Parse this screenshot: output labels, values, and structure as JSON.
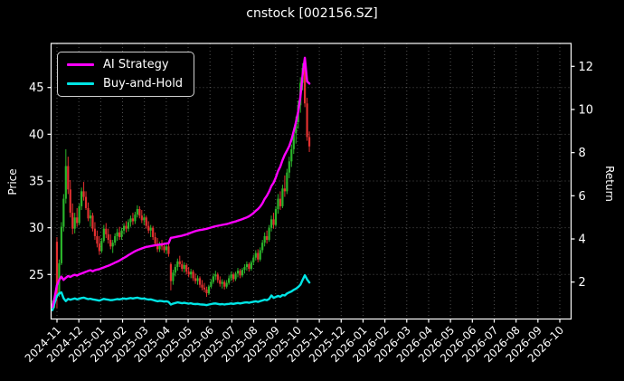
{
  "chart_data": {
    "type": "candlestick",
    "title": "cnstock [002156.SZ]",
    "left_axis": {
      "label": "Price",
      "ticks": [
        25,
        30,
        35,
        40,
        45
      ],
      "range": [
        20.3,
        49.7
      ]
    },
    "right_axis": {
      "label": "Return",
      "ticks": [
        2,
        4,
        6,
        8,
        10,
        12
      ],
      "range": [
        0.35,
        13.05
      ]
    },
    "x_tick_labels": [
      "2024-11",
      "2024-12",
      "2025-01",
      "2025-02",
      "2025-03",
      "2025-04",
      "2025-05",
      "2025-06",
      "2025-07",
      "2025-08",
      "2025-09",
      "2025-10",
      "2025-11",
      "2025-12",
      "2026-01",
      "2026-02",
      "2026-03",
      "2026-04",
      "2026-05",
      "2026-06",
      "2026-07",
      "2026-08",
      "2026-09",
      "2026-10"
    ],
    "grid": true,
    "legend_position": "upper left",
    "background": "#000000",
    "candles": {
      "name": "OHLC price",
      "axis": "left",
      "up_color": "#2bb52b",
      "down_color": "#e33030",
      "ohlc": [
        [
          21.6,
          22.2,
          21.2,
          21.9
        ],
        [
          21.9,
          22.5,
          21.4,
          22.2
        ],
        [
          28.5,
          29.0,
          21.4,
          22.5
        ],
        [
          22.8,
          26.6,
          22.6,
          26.2
        ],
        [
          26.2,
          30.6,
          26.0,
          30.1
        ],
        [
          30.1,
          33.6,
          29.6,
          33.1
        ],
        [
          33.1,
          38.4,
          32.6,
          36.6
        ],
        [
          36.6,
          37.6,
          33.6,
          34.1
        ],
        [
          34.1,
          35.1,
          31.1,
          31.6
        ],
        [
          31.6,
          32.6,
          29.3,
          29.9
        ],
        [
          29.9,
          31.6,
          29.4,
          31.1
        ],
        [
          31.1,
          32.1,
          30.1,
          30.5
        ],
        [
          30.5,
          32.6,
          30.3,
          32.3
        ],
        [
          32.3,
          34.3,
          31.9,
          33.9
        ],
        [
          33.9,
          34.9,
          32.9,
          33.3
        ],
        [
          33.3,
          33.9,
          31.9,
          32.1
        ],
        [
          32.1,
          32.7,
          30.7,
          31.0
        ],
        [
          31.0,
          31.9,
          30.1,
          31.3
        ],
        [
          31.3,
          31.6,
          29.6,
          29.9
        ],
        [
          29.9,
          30.6,
          28.7,
          29.1
        ],
        [
          29.1,
          29.7,
          27.9,
          28.3
        ],
        [
          28.3,
          29.1,
          27.1,
          27.5
        ],
        [
          27.5,
          28.9,
          27.3,
          28.6
        ],
        [
          28.6,
          30.3,
          28.4,
          29.9
        ],
        [
          29.9,
          30.5,
          28.9,
          29.3
        ],
        [
          29.3,
          29.9,
          28.3,
          28.7
        ],
        [
          28.7,
          29.3,
          27.7,
          28.0
        ],
        [
          28.0,
          28.7,
          27.3,
          28.4
        ],
        [
          28.4,
          29.4,
          28.1,
          29.1
        ],
        [
          29.1,
          29.9,
          28.6,
          29.5
        ],
        [
          29.5,
          30.1,
          28.7,
          29.0
        ],
        [
          29.0,
          30.0,
          28.7,
          29.7
        ],
        [
          29.7,
          30.5,
          29.3,
          30.2
        ],
        [
          30.2,
          30.7,
          29.5,
          29.9
        ],
        [
          29.9,
          30.9,
          29.6,
          30.6
        ],
        [
          30.6,
          31.3,
          30.1,
          31.0
        ],
        [
          31.0,
          31.6,
          30.3,
          30.7
        ],
        [
          30.7,
          31.7,
          30.4,
          31.4
        ],
        [
          31.4,
          32.4,
          31.1,
          32.0
        ],
        [
          32.0,
          32.3,
          31.0,
          31.3
        ],
        [
          31.3,
          31.9,
          30.5,
          30.8
        ],
        [
          30.8,
          31.5,
          30.3,
          31.1
        ],
        [
          31.1,
          31.3,
          29.9,
          30.2
        ],
        [
          30.2,
          30.7,
          29.4,
          29.7
        ],
        [
          29.7,
          30.3,
          29.0,
          30.0
        ],
        [
          30.0,
          30.2,
          28.7,
          29.0
        ],
        [
          29.0,
          29.5,
          28.0,
          28.3
        ],
        [
          28.3,
          28.9,
          27.4,
          27.7
        ],
        [
          27.7,
          28.5,
          27.4,
          28.2
        ],
        [
          28.2,
          28.7,
          27.6,
          28.0
        ],
        [
          28.0,
          28.4,
          27.3,
          27.6
        ],
        [
          27.6,
          28.3,
          27.2,
          28.0
        ],
        [
          28.0,
          28.3,
          26.9,
          27.2
        ],
        [
          26.1,
          26.3,
          23.3,
          24.3
        ],
        [
          24.3,
          25.5,
          23.9,
          25.2
        ],
        [
          25.2,
          26.1,
          24.8,
          25.8
        ],
        [
          25.8,
          26.7,
          25.4,
          26.4
        ],
        [
          26.4,
          27.0,
          25.8,
          26.1
        ],
        [
          26.1,
          26.5,
          25.3,
          25.6
        ],
        [
          25.6,
          26.3,
          25.2,
          26.0
        ],
        [
          26.0,
          26.2,
          25.0,
          25.3
        ],
        [
          25.3,
          25.8,
          24.7,
          25.0
        ],
        [
          25.0,
          25.6,
          24.6,
          25.3
        ],
        [
          25.3,
          25.5,
          24.3,
          24.6
        ],
        [
          24.6,
          25.1,
          24.0,
          24.3
        ],
        [
          24.3,
          24.9,
          23.9,
          24.6
        ],
        [
          24.6,
          24.8,
          23.6,
          23.9
        ],
        [
          23.9,
          24.4,
          23.3,
          23.6
        ],
        [
          23.6,
          24.1,
          23.1,
          23.4
        ],
        [
          23.4,
          23.7,
          22.6,
          23.0
        ],
        [
          23.0,
          23.9,
          22.8,
          23.7
        ],
        [
          23.7,
          24.5,
          23.5,
          24.2
        ],
        [
          24.2,
          25.1,
          24.0,
          24.8
        ],
        [
          24.8,
          25.4,
          24.4,
          25.0
        ],
        [
          25.0,
          25.2,
          24.1,
          24.4
        ],
        [
          24.4,
          24.8,
          23.7,
          24.0
        ],
        [
          24.0,
          24.5,
          23.5,
          24.2
        ],
        [
          24.2,
          24.4,
          23.4,
          23.7
        ],
        [
          23.7,
          24.4,
          23.5,
          24.1
        ],
        [
          24.1,
          24.9,
          23.9,
          24.6
        ],
        [
          24.6,
          25.3,
          24.3,
          25.0
        ],
        [
          25.0,
          25.2,
          24.2,
          24.5
        ],
        [
          24.5,
          25.3,
          24.3,
          25.1
        ],
        [
          25.1,
          25.7,
          24.7,
          25.4
        ],
        [
          25.4,
          25.6,
          24.6,
          24.9
        ],
        [
          24.9,
          25.7,
          24.7,
          25.5
        ],
        [
          25.5,
          26.1,
          25.1,
          25.8
        ],
        [
          25.8,
          26.4,
          25.4,
          26.1
        ],
        [
          26.1,
          26.3,
          25.3,
          25.6
        ],
        [
          25.6,
          26.5,
          25.4,
          26.3
        ],
        [
          26.3,
          27.1,
          26.0,
          26.8
        ],
        [
          26.8,
          27.6,
          26.5,
          27.3
        ],
        [
          27.3,
          27.7,
          26.3,
          26.6
        ],
        [
          26.6,
          27.9,
          26.4,
          27.6
        ],
        [
          27.6,
          28.7,
          27.3,
          28.4
        ],
        [
          28.4,
          29.5,
          28.0,
          29.1
        ],
        [
          29.1,
          29.7,
          28.3,
          28.7
        ],
        [
          28.7,
          30.3,
          28.5,
          30.0
        ],
        [
          30.0,
          31.3,
          29.6,
          30.9
        ],
        [
          30.9,
          31.6,
          29.9,
          30.3
        ],
        [
          30.3,
          32.3,
          30.1,
          32.0
        ],
        [
          32.0,
          33.6,
          31.5,
          33.1
        ],
        [
          33.1,
          33.9,
          31.9,
          32.3
        ],
        [
          32.3,
          34.6,
          32.1,
          34.2
        ],
        [
          34.2,
          35.6,
          33.3,
          33.9
        ],
        [
          33.9,
          36.3,
          33.6,
          35.9
        ],
        [
          35.9,
          37.6,
          35.3,
          37.1
        ],
        [
          37.1,
          38.9,
          36.5,
          38.4
        ],
        [
          38.4,
          40.6,
          37.9,
          40.1
        ],
        [
          40.1,
          41.9,
          39.0,
          41.3
        ],
        [
          41.3,
          43.6,
          40.6,
          43.1
        ],
        [
          43.1,
          46.1,
          42.3,
          45.5
        ],
        [
          45.5,
          47.6,
          44.7,
          47.1
        ],
        [
          47.1,
          47.3,
          42.9,
          43.3
        ],
        [
          43.3,
          43.9,
          39.3,
          39.7
        ],
        [
          39.7,
          40.3,
          38.1,
          38.7
        ]
      ]
    },
    "series": [
      {
        "name": "AI Strategy",
        "axis": "right",
        "color": "#ff00ff",
        "values": [
          0.85,
          1.3,
          1.85,
          2.1,
          2.25,
          2.1,
          2.2,
          2.28,
          2.24,
          2.3,
          2.34,
          2.3,
          2.36,
          2.4,
          2.44,
          2.48,
          2.52,
          2.55,
          2.5,
          2.55,
          2.58,
          2.6,
          2.64,
          2.68,
          2.72,
          2.76,
          2.8,
          2.85,
          2.9,
          2.95,
          3.0,
          3.06,
          3.12,
          3.18,
          3.25,
          3.31,
          3.37,
          3.43,
          3.48,
          3.52,
          3.56,
          3.6,
          3.63,
          3.65,
          3.67,
          3.69,
          3.71,
          3.72,
          3.74,
          3.75,
          3.77,
          3.79,
          3.8,
          4.05,
          4.07,
          4.09,
          4.11,
          4.13,
          4.15,
          4.18,
          4.21,
          4.25,
          4.29,
          4.33,
          4.36,
          4.39,
          4.41,
          4.43,
          4.45,
          4.47,
          4.5,
          4.53,
          4.56,
          4.59,
          4.61,
          4.63,
          4.65,
          4.67,
          4.69,
          4.72,
          4.75,
          4.78,
          4.81,
          4.85,
          4.88,
          4.92,
          4.96,
          5.0,
          5.05,
          5.12,
          5.2,
          5.3,
          5.38,
          5.5,
          5.65,
          5.85,
          6.0,
          6.2,
          6.45,
          6.6,
          6.85,
          7.15,
          7.35,
          7.65,
          7.9,
          8.1,
          8.3,
          8.6,
          9.0,
          9.4,
          9.9,
          10.6,
          11.6,
          12.4,
          11.3,
          11.2
        ]
      },
      {
        "name": "Buy-and-Hold",
        "axis": "right",
        "color": "#00e5e5",
        "values": [
          0.7,
          1.05,
          1.35,
          1.48,
          1.52,
          1.25,
          1.12,
          1.22,
          1.18,
          1.21,
          1.24,
          1.2,
          1.23,
          1.26,
          1.28,
          1.24,
          1.21,
          1.23,
          1.2,
          1.18,
          1.16,
          1.14,
          1.18,
          1.22,
          1.2,
          1.18,
          1.16,
          1.17,
          1.19,
          1.21,
          1.2,
          1.22,
          1.24,
          1.22,
          1.24,
          1.26,
          1.24,
          1.26,
          1.28,
          1.25,
          1.23,
          1.24,
          1.21,
          1.19,
          1.2,
          1.17,
          1.14,
          1.11,
          1.13,
          1.12,
          1.1,
          1.11,
          1.08,
          0.96,
          1.0,
          1.03,
          1.06,
          1.04,
          1.02,
          1.04,
          1.02,
          1.0,
          1.02,
          0.99,
          0.98,
          0.99,
          0.97,
          0.96,
          0.95,
          0.93,
          0.96,
          0.98,
          1.0,
          1.01,
          0.99,
          0.97,
          0.98,
          0.96,
          0.98,
          0.99,
          1.01,
          0.99,
          1.01,
          1.03,
          1.01,
          1.03,
          1.05,
          1.06,
          1.04,
          1.07,
          1.09,
          1.11,
          1.08,
          1.12,
          1.15,
          1.18,
          1.16,
          1.22,
          1.38,
          1.27,
          1.31,
          1.36,
          1.32,
          1.4,
          1.38,
          1.47,
          1.52,
          1.57,
          1.64,
          1.69,
          1.77,
          1.88,
          2.1,
          2.32,
          2.12,
          1.98
        ]
      }
    ]
  },
  "legend": {
    "items": [
      {
        "label": "AI Strategy",
        "color": "#ff00ff"
      },
      {
        "label": "Buy-and-Hold",
        "color": "#00e5e5"
      }
    ]
  },
  "colors": {
    "background": "#000000",
    "spine": "#ffffff",
    "grid": "rgba(255,255,255,0.32)",
    "tick_text": "#ffffff",
    "up": "#2bb52b",
    "down": "#e33030"
  }
}
